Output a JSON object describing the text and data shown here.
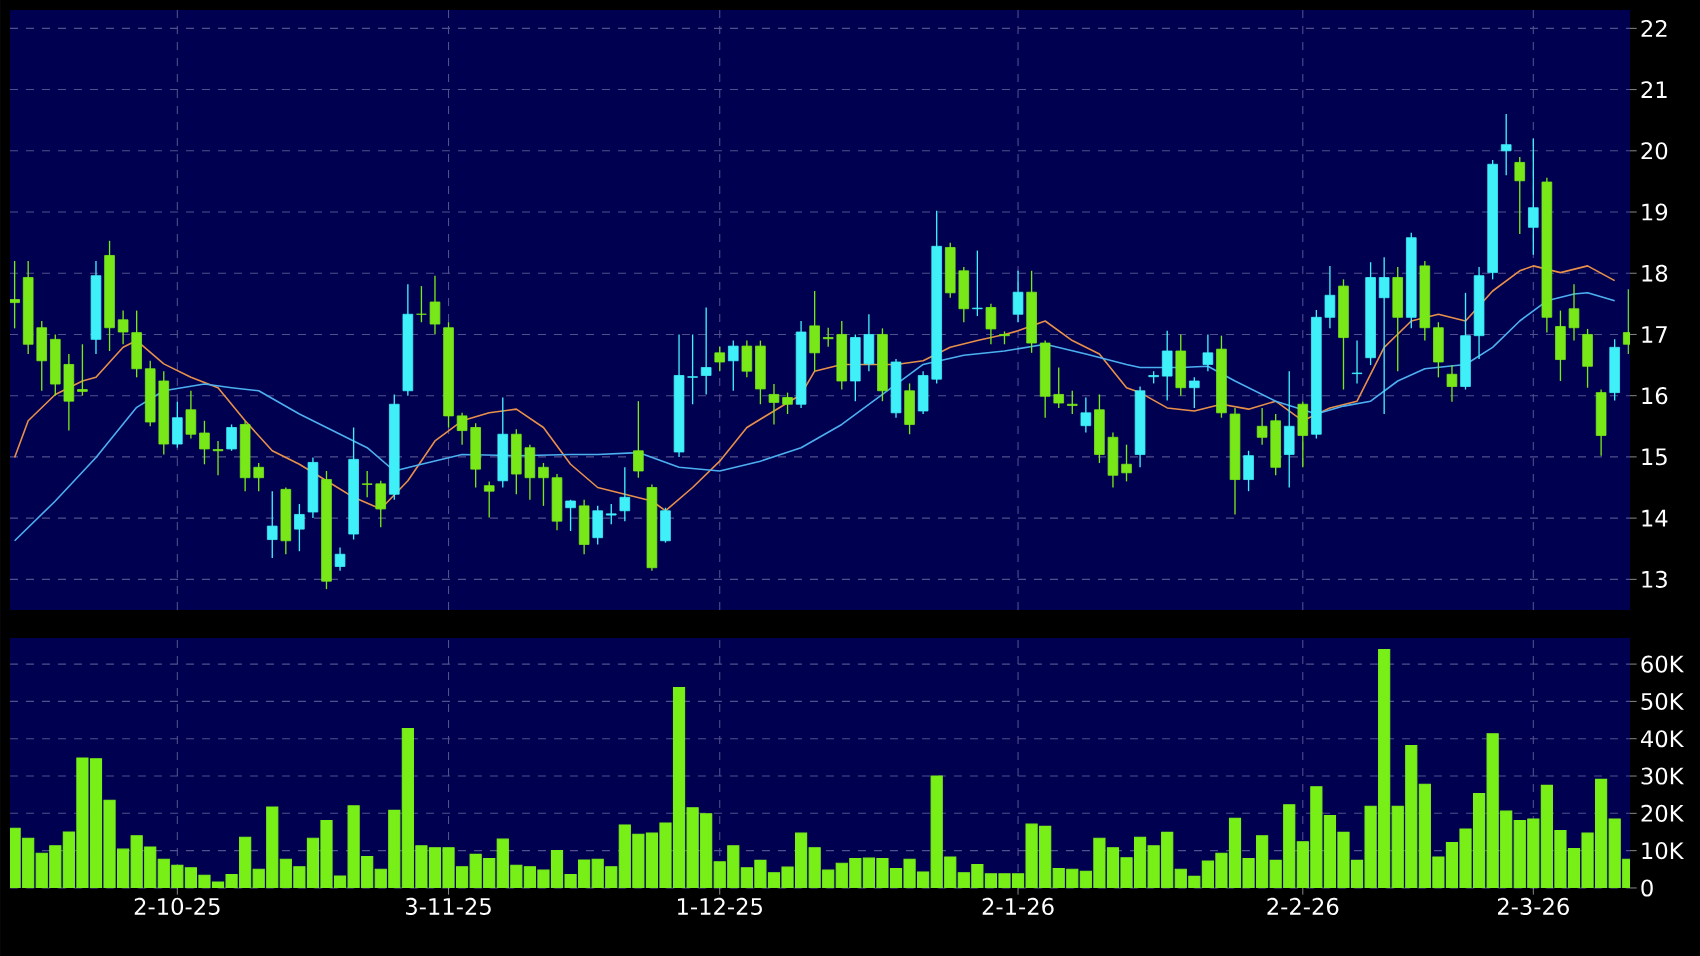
{
  "chart_data": [
    {
      "type": "candlestick",
      "grid": true,
      "ylim": [
        12.5,
        22.3
      ],
      "yticks": [
        13,
        14,
        15,
        16,
        17,
        18,
        19,
        20,
        21,
        22
      ],
      "categories": [
        null,
        null,
        null,
        null,
        null,
        null,
        null,
        null,
        null,
        null,
        null,
        null,
        null,
        null,
        null,
        null,
        null,
        null,
        null,
        null,
        null,
        null,
        null,
        null,
        null,
        null,
        null,
        null,
        null,
        null,
        null,
        null,
        null,
        null,
        null,
        null,
        null,
        null,
        null,
        null,
        null,
        null,
        null,
        null,
        null,
        null,
        null,
        null,
        null,
        null,
        null,
        null,
        null,
        null,
        null,
        null,
        null,
        null,
        null,
        null,
        null,
        null,
        null,
        null,
        null,
        null,
        null,
        null,
        null,
        null,
        null,
        null,
        null,
        null,
        null,
        null,
        null,
        null,
        null,
        null,
        null,
        null,
        null,
        null,
        null,
        null,
        null,
        null,
        null,
        null,
        null,
        null,
        null,
        null,
        null,
        null,
        null,
        null,
        null,
        null,
        null,
        null,
        null,
        null,
        null,
        null,
        null,
        null,
        null,
        null,
        null,
        null,
        null,
        null,
        null,
        null,
        null,
        null,
        null,
        null
      ],
      "ohlc": [
        [
          17.57,
          18.2,
          17.1,
          17.52
        ],
        [
          17.93,
          18.2,
          16.68,
          16.84
        ],
        [
          17.11,
          17.22,
          16.08,
          16.57
        ],
        [
          16.92,
          17.0,
          16.0,
          16.19
        ],
        [
          16.51,
          16.68,
          15.43,
          15.91
        ],
        [
          16.1,
          16.84,
          16.0,
          16.07
        ],
        [
          16.92,
          18.2,
          16.68,
          17.96
        ],
        [
          18.29,
          18.53,
          16.73,
          17.11
        ],
        [
          17.24,
          17.39,
          16.84,
          17.04
        ],
        [
          17.03,
          17.39,
          16.3,
          16.44
        ],
        [
          16.44,
          16.57,
          15.5,
          15.57
        ],
        [
          16.24,
          16.4,
          15.04,
          15.21
        ],
        [
          15.21,
          15.9,
          15.15,
          15.64
        ],
        [
          15.77,
          16.08,
          15.3,
          15.37
        ],
        [
          15.39,
          15.59,
          14.88,
          15.13
        ],
        [
          15.12,
          15.26,
          14.7,
          15.1
        ],
        [
          15.13,
          15.53,
          15.1,
          15.48
        ],
        [
          15.53,
          15.59,
          14.44,
          14.66
        ],
        [
          14.83,
          14.9,
          14.44,
          14.66
        ],
        [
          13.65,
          14.44,
          13.35,
          13.87
        ],
        [
          14.47,
          14.5,
          13.41,
          13.63
        ],
        [
          13.82,
          14.23,
          13.46,
          14.06
        ],
        [
          14.1,
          14.99,
          14.0,
          14.91
        ],
        [
          14.63,
          14.77,
          12.84,
          12.97
        ],
        [
          13.21,
          13.52,
          13.14,
          13.41
        ],
        [
          13.74,
          15.48,
          13.65,
          14.96
        ],
        [
          14.56,
          14.77,
          14.34,
          14.55
        ],
        [
          14.56,
          14.61,
          13.85,
          14.15
        ],
        [
          14.39,
          16.02,
          14.3,
          15.86
        ],
        [
          16.08,
          17.82,
          16.0,
          17.33
        ],
        [
          17.33,
          17.79,
          17.2,
          17.33
        ],
        [
          17.53,
          17.96,
          17.0,
          17.17
        ],
        [
          17.11,
          17.2,
          15.48,
          15.67
        ],
        [
          15.67,
          15.72,
          15.2,
          15.43
        ],
        [
          15.48,
          15.55,
          14.5,
          14.8
        ],
        [
          14.53,
          14.6,
          14.01,
          14.44
        ],
        [
          14.61,
          15.97,
          14.5,
          15.37
        ],
        [
          15.37,
          15.45,
          14.39,
          14.72
        ],
        [
          15.15,
          15.2,
          14.3,
          14.66
        ],
        [
          14.83,
          14.9,
          14.2,
          14.66
        ],
        [
          14.66,
          14.72,
          13.8,
          13.95
        ],
        [
          14.17,
          14.3,
          13.79,
          14.28
        ],
        [
          14.2,
          14.3,
          13.41,
          13.57
        ],
        [
          13.68,
          14.2,
          13.57,
          14.12
        ],
        [
          14.05,
          14.23,
          13.9,
          14.07
        ],
        [
          14.12,
          14.83,
          13.95,
          14.34
        ],
        [
          15.1,
          15.91,
          14.66,
          14.77
        ],
        [
          14.5,
          14.55,
          13.14,
          13.19
        ],
        [
          13.63,
          14.17,
          13.6,
          14.12
        ],
        [
          15.08,
          17.0,
          15.0,
          16.33
        ],
        [
          16.3,
          17.0,
          15.86,
          16.31
        ],
        [
          16.33,
          17.44,
          16.02,
          16.46
        ],
        [
          16.7,
          16.8,
          16.4,
          16.55
        ],
        [
          16.57,
          16.9,
          16.08,
          16.81
        ],
        [
          16.81,
          16.9,
          16.3,
          16.4
        ],
        [
          16.81,
          16.9,
          15.86,
          16.11
        ],
        [
          16.02,
          16.19,
          15.53,
          15.89
        ],
        [
          15.97,
          16.05,
          15.7,
          15.86
        ],
        [
          15.86,
          17.22,
          15.8,
          17.04
        ],
        [
          17.14,
          17.71,
          16.4,
          16.7
        ],
        [
          16.95,
          17.11,
          16.8,
          16.93
        ],
        [
          17.0,
          17.22,
          16.1,
          16.24
        ],
        [
          16.24,
          17.0,
          15.91,
          16.95
        ],
        [
          16.52,
          17.33,
          16.4,
          17.0
        ],
        [
          17.0,
          17.1,
          15.91,
          16.08
        ],
        [
          15.72,
          16.6,
          15.64,
          16.55
        ],
        [
          16.08,
          16.2,
          15.37,
          15.53
        ],
        [
          15.75,
          16.4,
          15.7,
          16.33
        ],
        [
          16.27,
          19.02,
          16.2,
          18.44
        ],
        [
          18.42,
          18.5,
          17.6,
          17.68
        ],
        [
          18.04,
          18.1,
          17.2,
          17.42
        ],
        [
          17.42,
          18.37,
          17.3,
          17.43
        ],
        [
          17.44,
          17.5,
          16.84,
          17.09
        ],
        [
          17.0,
          17.05,
          16.84,
          16.98
        ],
        [
          17.33,
          18.04,
          17.2,
          17.69
        ],
        [
          17.69,
          18.04,
          16.7,
          16.86
        ],
        [
          16.86,
          16.9,
          15.64,
          15.99
        ],
        [
          16.02,
          16.46,
          15.8,
          15.88
        ],
        [
          15.86,
          16.08,
          15.7,
          15.84
        ],
        [
          15.51,
          15.97,
          15.4,
          15.72
        ],
        [
          15.77,
          16.02,
          14.9,
          15.04
        ],
        [
          15.32,
          15.4,
          14.5,
          14.7
        ],
        [
          14.88,
          15.2,
          14.6,
          14.74
        ],
        [
          15.04,
          16.15,
          14.83,
          16.08
        ],
        [
          16.31,
          16.4,
          16.2,
          16.33
        ],
        [
          16.32,
          17.06,
          15.92,
          16.73
        ],
        [
          16.73,
          17.0,
          16.0,
          16.13
        ],
        [
          16.13,
          16.3,
          15.8,
          16.24
        ],
        [
          16.51,
          17.0,
          16.4,
          16.7
        ],
        [
          16.76,
          16.98,
          15.64,
          15.72
        ],
        [
          15.7,
          15.8,
          14.06,
          14.63
        ],
        [
          14.63,
          15.1,
          14.44,
          15.02
        ],
        [
          15.5,
          15.8,
          15.2,
          15.32
        ],
        [
          15.59,
          15.7,
          14.7,
          14.83
        ],
        [
          15.04,
          16.4,
          14.5,
          15.5
        ],
        [
          15.86,
          15.9,
          14.83,
          15.35
        ],
        [
          15.37,
          17.4,
          15.3,
          17.28
        ],
        [
          17.28,
          18.12,
          17.1,
          17.64
        ],
        [
          17.79,
          17.9,
          16.1,
          16.95
        ],
        [
          16.36,
          16.9,
          16.2,
          16.37
        ],
        [
          16.62,
          18.18,
          16.5,
          17.93
        ],
        [
          17.6,
          18.26,
          15.7,
          17.93
        ],
        [
          17.93,
          18.1,
          16.4,
          17.28
        ],
        [
          17.28,
          18.66,
          17.1,
          18.58
        ],
        [
          18.12,
          18.2,
          16.9,
          17.11
        ],
        [
          17.11,
          17.2,
          16.3,
          16.55
        ],
        [
          16.35,
          16.5,
          15.9,
          16.15
        ],
        [
          16.15,
          17.68,
          16.1,
          16.98
        ],
        [
          16.98,
          18.1,
          16.6,
          17.96
        ],
        [
          18.01,
          19.85,
          17.9,
          19.78
        ],
        [
          20.0,
          20.6,
          19.6,
          20.1
        ],
        [
          19.81,
          19.9,
          18.64,
          19.51
        ],
        [
          18.75,
          20.2,
          18.3,
          19.07
        ],
        [
          19.49,
          19.56,
          17.03,
          17.28
        ],
        [
          17.13,
          17.39,
          16.24,
          16.59
        ],
        [
          17.42,
          17.82,
          16.9,
          17.11
        ],
        [
          17.0,
          17.09,
          16.13,
          16.48
        ],
        [
          16.05,
          16.1,
          15.02,
          15.35
        ],
        [
          16.05,
          16.92,
          15.92,
          16.79
        ],
        [
          17.03,
          17.74,
          16.68,
          16.84
        ]
      ],
      "colors": [
        "#78e818",
        "#78e818",
        "#78e818",
        "#78e818",
        "#78e818",
        "#78e818",
        "#40f0f8",
        "#78e818",
        "#78e818",
        "#78e818",
        "#78e818",
        "#78e818",
        "#40f0f8",
        "#78e818",
        "#78e818",
        "#78e818",
        "#40f0f8",
        "#78e818",
        "#78e818",
        "#40f0f8",
        "#78e818",
        "#40f0f8",
        "#40f0f8",
        "#78e818",
        "#40f0f8",
        "#40f0f8",
        "#78e818",
        "#78e818",
        "#40f0f8",
        "#40f0f8",
        "#78e818",
        "#78e818",
        "#78e818",
        "#78e818",
        "#78e818",
        "#78e818",
        "#40f0f8",
        "#78e818",
        "#78e818",
        "#78e818",
        "#78e818",
        "#40f0f8",
        "#78e818",
        "#40f0f8",
        "#40f0f8",
        "#40f0f8",
        "#78e818",
        "#78e818",
        "#40f0f8",
        "#40f0f8",
        "#40f0f8",
        "#40f0f8",
        "#78e818",
        "#40f0f8",
        "#78e818",
        "#78e818",
        "#78e818",
        "#78e818",
        "#40f0f8",
        "#78e818",
        "#78e818",
        "#78e818",
        "#40f0f8",
        "#40f0f8",
        "#78e818",
        "#40f0f8",
        "#78e818",
        "#40f0f8",
        "#40f0f8",
        "#78e818",
        "#78e818",
        "#40f0f8",
        "#78e818",
        "#78e818",
        "#40f0f8",
        "#78e818",
        "#78e818",
        "#78e818",
        "#78e818",
        "#40f0f8",
        "#78e818",
        "#78e818",
        "#78e818",
        "#40f0f8",
        "#40f0f8",
        "#40f0f8",
        "#78e818",
        "#40f0f8",
        "#40f0f8",
        "#78e818",
        "#78e818",
        "#40f0f8",
        "#78e818",
        "#78e818",
        "#40f0f8",
        "#78e818",
        "#40f0f8",
        "#40f0f8",
        "#78e818",
        "#40f0f8",
        "#40f0f8",
        "#40f0f8",
        "#78e818",
        "#40f0f8",
        "#78e818",
        "#78e818",
        "#78e818",
        "#40f0f8",
        "#40f0f8",
        "#40f0f8",
        "#40f0f8",
        "#78e818",
        "#40f0f8",
        "#78e818",
        "#78e818",
        "#78e818",
        "#78e818",
        "#78e818",
        "#40f0f8",
        "#78e818"
      ],
      "series": [
        {
          "type": "line",
          "color": "#e8904a",
          "values": [
            14.99,
            15.59,
            null,
            16.02,
            null,
            16.24,
            16.3,
            null,
            16.79,
            16.9,
            null,
            16.52,
            null,
            16.3,
            null,
            16.13,
            null,
            15.59,
            null,
            15.1,
            null,
            14.88,
            null,
            14.61,
            null,
            14.34,
            null,
            14.15,
            null,
            14.61,
            null,
            15.26,
            null,
            15.59,
            null,
            15.72,
            null,
            15.78,
            null,
            15.48,
            null,
            14.88,
            null,
            14.5,
            null,
            14.39,
            null,
            14.28,
            14.12,
            null,
            14.5,
            null,
            14.93,
            null,
            15.48,
            null,
            15.75,
            null,
            16.02,
            16.4,
            null,
            16.51,
            null,
            16.51,
            null,
            16.51,
            null,
            16.57,
            null,
            16.79,
            null,
            16.9,
            null,
            17.0,
            17.06,
            null,
            17.22,
            null,
            16.9,
            null,
            16.68,
            null,
            16.13,
            16.05,
            null,
            15.8,
            null,
            15.75,
            null,
            15.86,
            null,
            15.78,
            null,
            15.91,
            null,
            15.59,
            null,
            15.8,
            null,
            15.91,
            null,
            16.79,
            null,
            17.22,
            null,
            17.33,
            null,
            17.22,
            null,
            17.71,
            null,
            18.04,
            18.12,
            null,
            18.01,
            null,
            18.12,
            null,
            17.88,
            null
          ]
        },
        {
          "type": "line",
          "color": "#4cb0f0",
          "values": [
            13.63,
            null,
            null,
            14.28,
            null,
            null,
            14.99,
            null,
            null,
            15.81,
            null,
            16.08,
            null,
            null,
            16.19,
            null,
            16.13,
            null,
            16.08,
            null,
            null,
            15.7,
            null,
            null,
            15.37,
            null,
            15.15,
            null,
            14.77,
            null,
            14.88,
            null,
            null,
            15.04,
            null,
            null,
            null,
            15.02,
            null,
            null,
            null,
            15.04,
            null,
            15.04,
            null,
            null,
            15.07,
            null,
            null,
            14.83,
            null,
            null,
            14.77,
            null,
            null,
            14.93,
            null,
            null,
            15.15,
            null,
            null,
            15.53,
            null,
            null,
            16.02,
            null,
            null,
            16.51,
            null,
            null,
            16.66,
            null,
            null,
            16.73,
            null,
            null,
            16.84,
            null,
            null,
            16.68,
            null,
            null,
            16.51,
            16.46,
            null,
            null,
            16.46,
            null,
            16.48,
            null,
            16.24,
            null,
            null,
            15.91,
            null,
            null,
            15.7,
            null,
            15.83,
            null,
            15.91,
            null,
            16.24,
            null,
            16.44,
            null,
            null,
            16.51,
            null,
            16.79,
            null,
            17.22,
            null,
            17.55,
            null,
            17.66,
            17.68,
            null,
            17.55,
            null
          ]
        }
      ]
    },
    {
      "type": "bar",
      "grid": true,
      "color": "#78f018",
      "ylim": [
        0,
        67000
      ],
      "yticks": [
        0,
        {
          "value": 10000,
          "label": "10K"
        },
        {
          "value": 20000,
          "label": "20K"
        },
        {
          "value": 30000,
          "label": "30K"
        },
        {
          "value": 40000,
          "label": "40K"
        },
        {
          "value": 50000,
          "label": "50K"
        },
        {
          "value": 60000,
          "label": "60K"
        }
      ],
      "categories": [
        null,
        null,
        null,
        null,
        null,
        null,
        null,
        null,
        null,
        null,
        null,
        null,
        "2-10-25",
        null,
        null,
        null,
        null,
        null,
        null,
        null,
        null,
        null,
        null,
        null,
        null,
        null,
        null,
        null,
        null,
        null,
        null,
        null,
        "3-11-25",
        null,
        null,
        null,
        null,
        null,
        null,
        null,
        null,
        null,
        null,
        null,
        null,
        null,
        null,
        null,
        null,
        null,
        null,
        null,
        "1-12-25",
        null,
        null,
        null,
        null,
        null,
        null,
        null,
        null,
        null,
        null,
        null,
        null,
        null,
        null,
        null,
        null,
        null,
        null,
        null,
        null,
        null,
        "2-1-26",
        null,
        null,
        null,
        null,
        null,
        null,
        null,
        null,
        null,
        null,
        null,
        null,
        null,
        null,
        null,
        null,
        null,
        null,
        null,
        null,
        "2-2-26",
        null,
        null,
        null,
        null,
        null,
        null,
        null,
        null,
        null,
        null,
        null,
        null,
        null,
        null,
        null,
        null,
        "2-3-26",
        null,
        null,
        null,
        null,
        null,
        null,
        null
      ],
      "values": [
        16000,
        13300,
        9300,
        11300,
        15000,
        34800,
        34600,
        23500,
        10400,
        14000,
        11000,
        7700,
        6100,
        5400,
        3400,
        1600,
        3600,
        13600,
        5000,
        21700,
        7700,
        5700,
        13300,
        18100,
        3200,
        22000,
        8400,
        5000,
        20800,
        42700,
        11300,
        10800,
        10800,
        5700,
        9000,
        7900,
        13100,
        6100,
        5700,
        4800,
        10000,
        3600,
        7500,
        7700,
        5700,
        16900,
        14400,
        14700,
        17400,
        53700,
        21500,
        19900,
        7000,
        11300,
        5400,
        7400,
        4100,
        5600,
        14700,
        10800,
        4800,
        6600,
        7900,
        8000,
        7900,
        5200,
        7700,
        4300,
        30000,
        8300,
        4100,
        6300,
        3800,
        3800,
        3800,
        17100,
        16500,
        5200,
        5000,
        4500,
        13300,
        10800,
        8100,
        13600,
        11300,
        14900,
        5000,
        3100,
        7200,
        9300,
        18700,
        7900,
        14000,
        7400,
        22300,
        12400,
        27100,
        19400,
        14900,
        7400,
        21900,
        63900,
        21900,
        38200,
        27800,
        8300,
        12200,
        15800,
        25300,
        41300,
        20600,
        18100,
        18500,
        27500,
        15400,
        10600,
        14700,
        29100,
        18500,
        7700
      ]
    }
  ]
}
